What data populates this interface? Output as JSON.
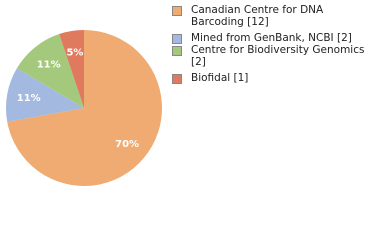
{
  "chart_data": {
    "type": "pie",
    "categories": [
      "Canadian Centre for DNA Barcoding [12]",
      "Mined from GenBank, NCBI [2]",
      "Centre for Biodiversity Genomics [2]",
      "Biofidal [1]"
    ],
    "values": [
      70,
      11,
      11,
      5
    ],
    "colors": [
      "#efab72",
      "#a3b9e0",
      "#a5c97c",
      "#df7a5e"
    ],
    "value_labels": [
      "70%",
      "11%",
      "11%",
      "5%"
    ]
  }
}
